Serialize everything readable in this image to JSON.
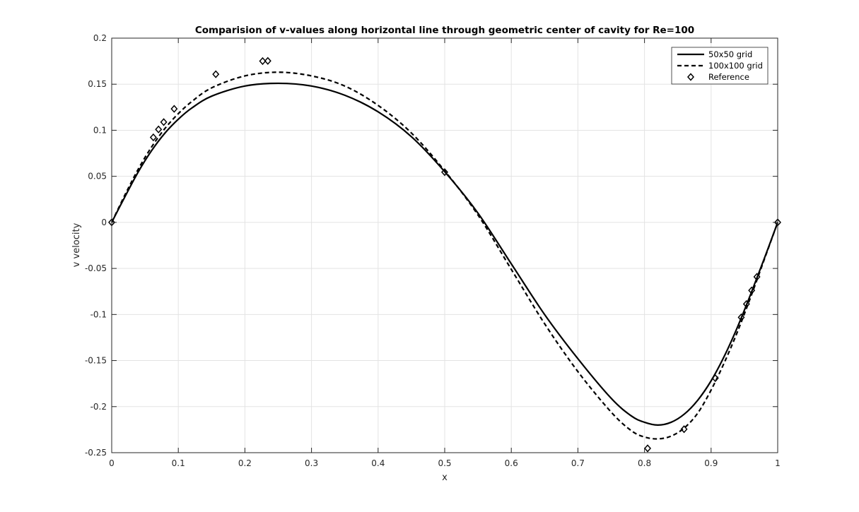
{
  "chart_data": {
    "type": "line",
    "title": "Comparision of v-values along horizontal line through geometric center of cavity for Re=100",
    "xlabel": "x",
    "ylabel": "v velocity",
    "xlim": [
      0,
      1
    ],
    "ylim": [
      -0.25,
      0.2
    ],
    "xticks": [
      0,
      0.1,
      0.2,
      0.3,
      0.4,
      0.5,
      0.6,
      0.7,
      0.8,
      0.9,
      1
    ],
    "xtick_labels": [
      "0",
      "0.1",
      "0.2",
      "0.3",
      "0.4",
      "0.5",
      "0.6",
      "0.7",
      "0.8",
      "0.9",
      "1"
    ],
    "yticks": [
      -0.25,
      -0.2,
      -0.15,
      -0.1,
      -0.05,
      0,
      0.05,
      0.1,
      0.15,
      0.2
    ],
    "ytick_labels": [
      "-0.25",
      "-0.2",
      "-0.15",
      "-0.1",
      "-0.05",
      "0",
      "0.05",
      "0.1",
      "0.15",
      "0.2"
    ],
    "grid": true,
    "legend_position": "top-right",
    "series": [
      {
        "name": "50x50 grid",
        "style": "solid",
        "color": "#000000",
        "x": [
          0,
          0.02,
          0.04,
          0.06,
          0.08,
          0.1,
          0.12,
          0.15,
          0.2,
          0.25,
          0.3,
          0.35,
          0.4,
          0.45,
          0.5,
          0.55,
          0.6,
          0.65,
          0.7,
          0.75,
          0.78,
          0.8,
          0.82,
          0.84,
          0.86,
          0.88,
          0.9,
          0.92,
          0.94,
          0.96,
          0.98,
          1
        ],
        "y": [
          0,
          0.028,
          0.055,
          0.078,
          0.097,
          0.112,
          0.124,
          0.137,
          0.148,
          0.151,
          0.148,
          0.138,
          0.12,
          0.093,
          0.055,
          0.01,
          -0.045,
          -0.1,
          -0.148,
          -0.191,
          -0.21,
          -0.217,
          -0.22,
          -0.217,
          -0.208,
          -0.193,
          -0.172,
          -0.145,
          -0.113,
          -0.077,
          -0.039,
          0
        ]
      },
      {
        "name": "100x100 grid",
        "style": "dashed",
        "color": "#000000",
        "x": [
          0,
          0.02,
          0.04,
          0.06,
          0.08,
          0.1,
          0.12,
          0.15,
          0.2,
          0.25,
          0.3,
          0.35,
          0.4,
          0.45,
          0.5,
          0.55,
          0.6,
          0.65,
          0.7,
          0.75,
          0.78,
          0.8,
          0.82,
          0.84,
          0.86,
          0.88,
          0.9,
          0.92,
          0.94,
          0.96,
          0.98,
          1
        ],
        "y": [
          0,
          0.03,
          0.058,
          0.082,
          0.102,
          0.118,
          0.131,
          0.146,
          0.159,
          0.163,
          0.159,
          0.148,
          0.127,
          0.097,
          0.056,
          0.008,
          -0.051,
          -0.11,
          -0.162,
          -0.206,
          -0.226,
          -0.233,
          -0.235,
          -0.232,
          -0.223,
          -0.207,
          -0.182,
          -0.152,
          -0.118,
          -0.08,
          -0.04,
          0
        ]
      },
      {
        "name": "Reference",
        "style": "markers",
        "marker": "diamond",
        "color": "#000000",
        "x": [
          0,
          0.0625,
          0.0703,
          0.0781,
          0.0938,
          0.1563,
          0.2266,
          0.2344,
          0.5,
          0.8047,
          0.8594,
          0.9063,
          0.9453,
          0.9531,
          0.9609,
          0.9688,
          1
        ],
        "y": [
          0,
          0.0923,
          0.1009,
          0.1089,
          0.1232,
          0.1608,
          0.1751,
          0.1753,
          0.0545,
          -0.2453,
          -0.2245,
          -0.1691,
          -0.1031,
          -0.0886,
          -0.0739,
          -0.0591,
          0
        ]
      }
    ]
  }
}
